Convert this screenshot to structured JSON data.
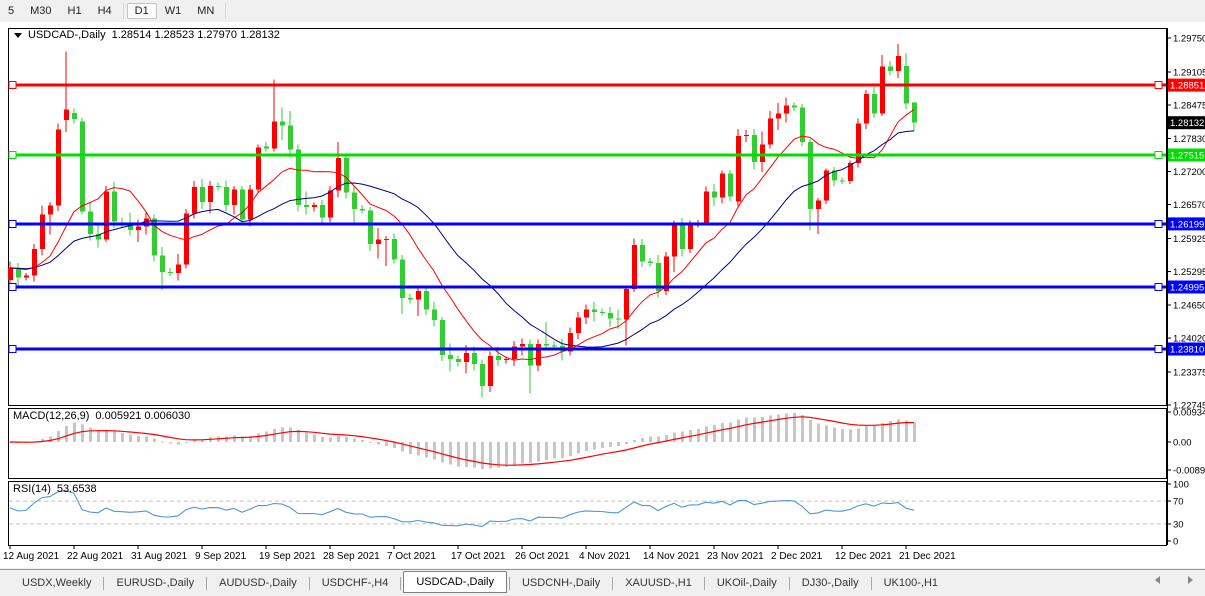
{
  "toolbar": {
    "items": [
      "5",
      "M30",
      "H1",
      "H4",
      "D1",
      "W1",
      "MN"
    ],
    "active": "D1"
  },
  "header": {
    "symbol": "USDCAD-,Daily",
    "ohlc": "1.28514 1.28523 1.27970 1.28132"
  },
  "price_scale": {
    "ticks": [
      "1.29750",
      "1.29105",
      "1.28475",
      "1.27830",
      "1.27200",
      "1.26570",
      "1.25925",
      "1.25295",
      "1.24650",
      "1.24020",
      "1.23375",
      "1.22745"
    ]
  },
  "hlines": [
    {
      "price": 1.28851,
      "label": "1.28851",
      "color": "#FF0000"
    },
    {
      "price": 1.27515,
      "label": "1.27515",
      "color": "#00DD00"
    },
    {
      "price": 1.26199,
      "label": "1.26199",
      "color": "#0000FF"
    },
    {
      "price": 1.24995,
      "label": "1.24995",
      "color": "#0000FF"
    },
    {
      "price": 1.2381,
      "label": "1.23810",
      "color": "#0000FF"
    }
  ],
  "current_price": {
    "label": "1.28132",
    "bg": "#000000"
  },
  "macd": {
    "title": "MACD(12,26,9)",
    "values": "0.005921 0.006030",
    "axis": [
      "0.009345",
      "0.00",
      "-0.00890"
    ]
  },
  "rsi": {
    "title": "RSI(14)",
    "value": "53.6538",
    "axis": [
      "100",
      "70",
      "30",
      "0"
    ],
    "levels": [
      70,
      30
    ]
  },
  "dates": [
    "12 Aug 2021",
    "22 Aug 2021",
    "31 Aug 2021",
    "9 Sep 2021",
    "19 Sep 2021",
    "28 Sep 2021",
    "7 Oct 2021",
    "17 Oct 2021",
    "26 Oct 2021",
    "4 Nov 2021",
    "14 Nov 2021",
    "23 Nov 2021",
    "2 Dec 2021",
    "12 Dec 2021",
    "21 Dec 2021"
  ],
  "tabs": {
    "items": [
      "USDX,Weekly",
      "EURUSD-,Daily",
      "AUDUSD-,Daily",
      "USDCHF-,H4",
      "USDCAD-,Daily",
      "USDCNH-,Daily",
      "XAUUSD-,H1",
      "UKOil-,Daily",
      "DJ30-,Daily",
      "UK100-,H1"
    ],
    "active_index": 4
  },
  "chart_data": {
    "type": "candlestick",
    "symbol": "USDCAD-",
    "timeframe": "Daily",
    "title": "USDCAD-,Daily 1.28514 1.28523 1.27970 1.28132",
    "y_range": [
      1.2272,
      1.2994
    ],
    "x_label_every": 8,
    "colors": {
      "bull": "#FF0000",
      "bear": "#33CC33",
      "ma_fast": "#FF0000",
      "ma_slow": "#000080",
      "macd_bar": "#C6C6C6",
      "macd_signal": "#FF0000",
      "rsi_line": "#4D96D9",
      "level_dash": "#C4C4C4"
    },
    "indicators": {
      "ma_fast_period": 10,
      "ma_slow_period": 21,
      "macd": [
        12,
        26,
        9
      ],
      "rsi_period": 14
    },
    "candles": [
      [
        1.2513,
        1.2548,
        1.2493,
        1.2536
      ],
      [
        1.2536,
        1.2545,
        1.2498,
        1.2518
      ],
      [
        1.2518,
        1.2526,
        1.2512,
        1.2521
      ],
      [
        1.2521,
        1.2582,
        1.251,
        1.2572
      ],
      [
        1.2572,
        1.2655,
        1.256,
        1.2638
      ],
      [
        1.2638,
        1.2662,
        1.26,
        1.2655
      ],
      [
        1.2655,
        1.2812,
        1.2645,
        1.28
      ],
      [
        1.2818,
        1.2949,
        1.2795,
        1.2838
      ],
      [
        1.2832,
        1.284,
        1.2812,
        1.282
      ],
      [
        1.2816,
        1.2822,
        1.2638,
        1.2644
      ],
      [
        1.2644,
        1.2662,
        1.2588,
        1.2601
      ],
      [
        1.2601,
        1.2618,
        1.2575,
        1.259
      ],
      [
        1.259,
        1.2692,
        1.2585,
        1.2682
      ],
      [
        1.2682,
        1.27,
        1.2612,
        1.2625
      ],
      [
        1.2622,
        1.2632,
        1.2612,
        1.2618
      ],
      [
        1.2618,
        1.2642,
        1.2598,
        1.2608
      ],
      [
        1.2608,
        1.2628,
        1.2585,
        1.2615
      ],
      [
        1.2615,
        1.2642,
        1.26,
        1.263
      ],
      [
        1.263,
        1.2638,
        1.2548,
        1.256
      ],
      [
        1.256,
        1.2576,
        1.2494,
        1.2528
      ],
      [
        1.2528,
        1.2536,
        1.252,
        1.2526
      ],
      [
        1.2526,
        1.2562,
        1.2512,
        1.2542
      ],
      [
        1.2542,
        1.2648,
        1.2535,
        1.264
      ],
      [
        1.264,
        1.2702,
        1.263,
        1.269
      ],
      [
        1.269,
        1.2706,
        1.2648,
        1.2662
      ],
      [
        1.2662,
        1.2702,
        1.264,
        1.2692
      ],
      [
        1.2692,
        1.2699,
        1.2684,
        1.269
      ],
      [
        1.269,
        1.2703,
        1.2644,
        1.2656
      ],
      [
        1.2656,
        1.2692,
        1.2638,
        1.2686
      ],
      [
        1.2686,
        1.2692,
        1.2618,
        1.2628
      ],
      [
        1.2628,
        1.2694,
        1.2615,
        1.2686
      ],
      [
        1.2686,
        1.2772,
        1.268,
        1.2766
      ],
      [
        1.2768,
        1.2776,
        1.2758,
        1.2764
      ],
      [
        1.2764,
        1.2896,
        1.2758,
        1.2816
      ],
      [
        1.2816,
        1.2842,
        1.278,
        1.2808
      ],
      [
        1.2808,
        1.2836,
        1.2748,
        1.2762
      ],
      [
        1.2762,
        1.2772,
        1.2644,
        1.2656
      ],
      [
        1.2656,
        1.2682,
        1.2638,
        1.2652
      ],
      [
        1.2652,
        1.2661,
        1.2644,
        1.2656
      ],
      [
        1.2656,
        1.2666,
        1.2618,
        1.2632
      ],
      [
        1.2632,
        1.2692,
        1.2624,
        1.2684
      ],
      [
        1.2684,
        1.2776,
        1.267,
        1.2746
      ],
      [
        1.2746,
        1.2752,
        1.2668,
        1.268
      ],
      [
        1.268,
        1.2692,
        1.2618,
        1.2648
      ],
      [
        1.2648,
        1.2656,
        1.264,
        1.2646
      ],
      [
        1.2646,
        1.2652,
        1.2568,
        1.2582
      ],
      [
        1.2582,
        1.2612,
        1.2554,
        1.259
      ],
      [
        1.259,
        1.2597,
        1.254,
        1.2591
      ],
      [
        1.2591,
        1.2602,
        1.2544,
        1.2552
      ],
      [
        1.2552,
        1.2561,
        1.2448,
        1.2478
      ],
      [
        1.2478,
        1.2486,
        1.2468,
        1.2476
      ],
      [
        1.2476,
        1.2502,
        1.2444,
        1.2492
      ],
      [
        1.2492,
        1.2497,
        1.2446,
        1.2456
      ],
      [
        1.2456,
        1.2471,
        1.2424,
        1.2436
      ],
      [
        1.2436,
        1.2442,
        1.2358,
        1.237
      ],
      [
        1.237,
        1.2392,
        1.2338,
        1.2362
      ],
      [
        1.2362,
        1.2369,
        1.2348,
        1.2356
      ],
      [
        1.2356,
        1.2389,
        1.2334,
        1.2373
      ],
      [
        1.2373,
        1.2386,
        1.234,
        1.2352
      ],
      [
        1.2352,
        1.2361,
        1.2288,
        1.231
      ],
      [
        1.231,
        1.2376,
        1.2299,
        1.2368
      ],
      [
        1.2368,
        1.2386,
        1.2349,
        1.236
      ],
      [
        1.236,
        1.2367,
        1.2353,
        1.2362
      ],
      [
        1.2362,
        1.2396,
        1.2349,
        1.2386
      ],
      [
        1.2386,
        1.2401,
        1.2369,
        1.2391
      ],
      [
        1.2391,
        1.2399,
        1.2296,
        1.235
      ],
      [
        1.235,
        1.2399,
        1.2339,
        1.2391
      ],
      [
        1.2391,
        1.2433,
        1.2379,
        1.2388
      ],
      [
        1.2388,
        1.2395,
        1.2381,
        1.2387
      ],
      [
        1.2387,
        1.2401,
        1.2359,
        1.2376
      ],
      [
        1.2376,
        1.2422,
        1.2369,
        1.2412
      ],
      [
        1.2412,
        1.2452,
        1.24,
        1.2441
      ],
      [
        1.2441,
        1.2466,
        1.2429,
        1.2456
      ],
      [
        1.2456,
        1.2471,
        1.2434,
        1.2452
      ],
      [
        1.2452,
        1.2458,
        1.2445,
        1.245
      ],
      [
        1.245,
        1.2461,
        1.2424,
        1.2439
      ],
      [
        1.2439,
        1.2456,
        1.2419,
        1.2437
      ],
      [
        1.2437,
        1.2502,
        1.2388,
        1.2496
      ],
      [
        1.2496,
        1.2592,
        1.249,
        1.258
      ],
      [
        1.258,
        1.2591,
        1.2538,
        1.2548
      ],
      [
        1.2548,
        1.2555,
        1.2539,
        1.2545
      ],
      [
        1.2545,
        1.2561,
        1.2479,
        1.2492
      ],
      [
        1.2492,
        1.2566,
        1.2484,
        1.2558
      ],
      [
        1.2558,
        1.2626,
        1.2528,
        1.262
      ],
      [
        1.262,
        1.2631,
        1.2558,
        1.2572
      ],
      [
        1.2572,
        1.2626,
        1.2564,
        1.262
      ],
      [
        1.262,
        1.2627,
        1.2613,
        1.2622
      ],
      [
        1.2622,
        1.2691,
        1.2617,
        1.2682
      ],
      [
        1.2682,
        1.2696,
        1.2654,
        1.267
      ],
      [
        1.267,
        1.2722,
        1.2659,
        1.2716
      ],
      [
        1.2716,
        1.2723,
        1.2664,
        1.2672
      ],
      [
        1.2663,
        1.2801,
        1.2654,
        1.2788
      ],
      [
        1.2788,
        1.2799,
        1.2776,
        1.279
      ],
      [
        1.279,
        1.2801,
        1.2724,
        1.2738
      ],
      [
        1.2738,
        1.2796,
        1.2719,
        1.2772
      ],
      [
        1.2772,
        1.2836,
        1.2764,
        1.2821
      ],
      [
        1.2821,
        1.2851,
        1.2799,
        1.2831
      ],
      [
        1.2831,
        1.2861,
        1.2814,
        1.2846
      ],
      [
        1.2846,
        1.2852,
        1.2836,
        1.2842
      ],
      [
        1.2842,
        1.2849,
        1.2769,
        1.2776
      ],
      [
        1.2776,
        1.2782,
        1.2607,
        1.2648
      ],
      [
        1.2648,
        1.2669,
        1.2601,
        1.2665
      ],
      [
        1.2665,
        1.2726,
        1.2658,
        1.2722
      ],
      [
        1.2722,
        1.2729,
        1.2692,
        1.2703
      ],
      [
        1.2703,
        1.2709,
        1.2696,
        1.2702
      ],
      [
        1.2702,
        1.2741,
        1.2696,
        1.2736
      ],
      [
        1.2736,
        1.2821,
        1.2728,
        1.2812
      ],
      [
        1.2812,
        1.2876,
        1.2801,
        1.2868
      ],
      [
        1.2868,
        1.2881,
        1.2822,
        1.2831
      ],
      [
        1.2831,
        1.2943,
        1.2826,
        1.2921
      ],
      [
        1.2921,
        1.2931,
        1.2903,
        1.2912
      ],
      [
        1.2912,
        1.2964,
        1.2899,
        1.2941
      ],
      [
        1.2922,
        1.2946,
        1.2839,
        1.285
      ],
      [
        1.28514,
        1.28523,
        1.2797,
        1.28132
      ]
    ]
  }
}
